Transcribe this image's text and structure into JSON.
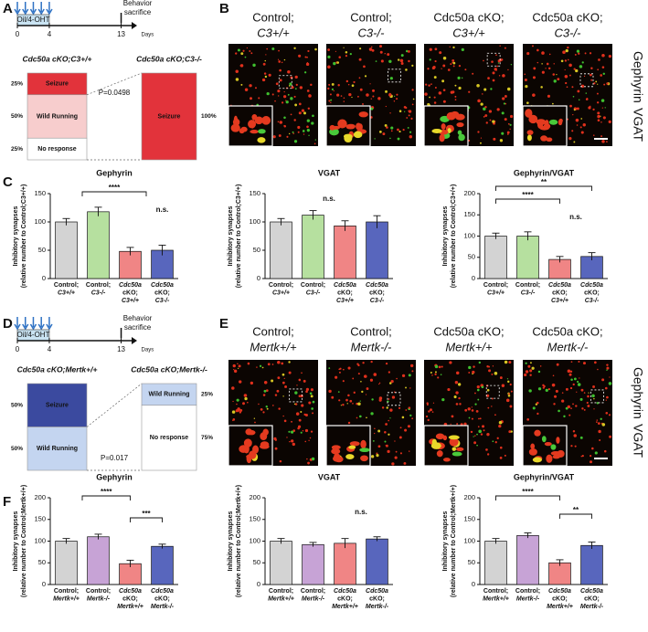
{
  "panel_labels": [
    "A",
    "B",
    "C",
    "D",
    "E",
    "F"
  ],
  "timelines": [
    {
      "treatment": "Oil/4-OHT",
      "event": [
        "Behavior",
        "sacrifice"
      ],
      "days_label": "Days",
      "xlim": [
        0,
        15
      ],
      "xticks": [
        0,
        4,
        13
      ]
    },
    {
      "treatment": "Oil/4-OHT",
      "event": [
        "Behavior",
        "sacrifice"
      ],
      "days_label": "Days",
      "xlim": [
        0,
        15
      ],
      "xticks": [
        0,
        4,
        13
      ]
    }
  ],
  "seizure_panels": [
    {
      "p_value": "P=0.0498",
      "groups": [
        {
          "title": "Cdc50a cKO;C3+/+",
          "segments": [
            "Seizure",
            "Wild Running",
            "No response"
          ],
          "values": [
            25,
            50,
            25
          ],
          "value_labels": [
            "25%",
            "50%",
            "25%"
          ],
          "colors": [
            "#e2333b",
            "#f7cdcd",
            "#ffffff"
          ]
        },
        {
          "title": "Cdc50a cKO;C3-/-",
          "segments": [
            "Seizure"
          ],
          "values": [
            100
          ],
          "value_labels": [
            "100%"
          ],
          "colors": [
            "#e2333b"
          ]
        }
      ]
    },
    {
      "p_value": "P=0.017",
      "groups": [
        {
          "title": "Cdc50a cKO;Mertk+/+",
          "segments": [
            "Seizure",
            "Wild Running"
          ],
          "values": [
            50,
            50
          ],
          "value_labels": [
            "50%",
            "50%"
          ],
          "colors": [
            "#3b4a9f",
            "#c4d5f0"
          ]
        },
        {
          "title": "Cdc50a cKO;Mertk-/-",
          "segments": [
            "Wild Running",
            "No response"
          ],
          "values": [
            25,
            75
          ],
          "value_labels": [
            "25%",
            "75%"
          ],
          "colors": [
            "#c4d5f0",
            "#ffffff"
          ]
        }
      ]
    }
  ],
  "image_panels": [
    {
      "columns": [
        [
          "Control;",
          "C3+/+"
        ],
        [
          "Control;",
          "C3-/-"
        ],
        [
          "Cdc50a cKO;",
          "C3+/+"
        ],
        [
          "Cdc50a cKO;",
          "C3-/-"
        ]
      ],
      "stains": [
        "Gephyrin",
        "VGAT"
      ],
      "stain_colors": [
        "#2fa82f",
        "#e0201e"
      ]
    },
    {
      "columns": [
        [
          "Control;",
          "Mertk+/+"
        ],
        [
          "Control;",
          "Mertk-/-"
        ],
        [
          "Cdc50a cKO;",
          "Mertk+/+"
        ],
        [
          "Cdc50a cKO;",
          "Mertk-/-"
        ]
      ],
      "stains": [
        "Gephyrin",
        "VGAT"
      ],
      "stain_colors": [
        "#2fa82f",
        "#e0201e"
      ]
    }
  ],
  "chart_data": [
    {
      "type": "bar",
      "title": "Gephyrin",
      "ylabel": [
        "Inhibitory synapses",
        "(relative number to Control;C3+/+)"
      ],
      "categories": [
        [
          "Control;",
          "C3+/+"
        ],
        [
          "Control;",
          "C3-/-"
        ],
        [
          "Cdc50a",
          "cKO;",
          "C3+/+"
        ],
        [
          "Cdc50a",
          "cKO;",
          "C3-/-"
        ]
      ],
      "values": [
        100,
        118,
        48,
        50
      ],
      "errors": [
        6,
        8,
        7,
        9
      ],
      "colors": [
        "#d3d3d3",
        "#b6e09f",
        "#f08585",
        "#5866bd"
      ],
      "ylim": [
        0,
        150
      ],
      "yticks": [
        0,
        50,
        100,
        150
      ],
      "annotations": [
        "****",
        "n.s."
      ]
    },
    {
      "type": "bar",
      "title": "VGAT",
      "ylabel": [
        "Inhibitory synapses",
        "(relative number to Control;C3+/+)"
      ],
      "categories": [
        [
          "Control;",
          "C3+/+"
        ],
        [
          "Control;",
          "C3-/-"
        ],
        [
          "Cdc50a",
          "cKO;",
          "C3+/+"
        ],
        [
          "Cdc50a",
          "cKO;",
          "C3-/-"
        ]
      ],
      "values": [
        100,
        112,
        93,
        100
      ],
      "errors": [
        6,
        8,
        9,
        11
      ],
      "colors": [
        "#d3d3d3",
        "#b6e09f",
        "#f08585",
        "#5866bd"
      ],
      "ylim": [
        0,
        150
      ],
      "yticks": [
        0,
        50,
        100,
        150
      ],
      "annotations": [
        "n.s."
      ]
    },
    {
      "type": "bar",
      "title": "Gephyrin/VGAT",
      "ylabel": [
        "Inhibitory synapses",
        "(relative number to Control;C3+/+)"
      ],
      "categories": [
        [
          "Control;",
          "C3+/+"
        ],
        [
          "Control;",
          "C3-/-"
        ],
        [
          "Cdc50a",
          "cKO;",
          "C3+/+"
        ],
        [
          "Cdc50a",
          "cKO;",
          "C3-/-"
        ]
      ],
      "values": [
        100,
        100,
        45,
        52
      ],
      "errors": [
        7,
        10,
        7,
        9
      ],
      "colors": [
        "#d3d3d3",
        "#b6e09f",
        "#f08585",
        "#5866bd"
      ],
      "ylim": [
        0,
        200
      ],
      "yticks": [
        0,
        50,
        100,
        150,
        200
      ],
      "annotations": [
        "**",
        "****",
        "n.s."
      ]
    },
    {
      "type": "bar",
      "title": "Gephyrin",
      "ylabel": [
        "Inhibitory synapses",
        "(relative number to Control;Mertk+/+)"
      ],
      "categories": [
        [
          "Control;",
          "Mertk+/+"
        ],
        [
          "Control;",
          "Mertk-/-"
        ],
        [
          "Cdc50a",
          "cKO;",
          "Mertk+/+"
        ],
        [
          "Cdc50a",
          "cKO;",
          "Mertk-/-"
        ]
      ],
      "values": [
        100,
        110,
        48,
        88
      ],
      "errors": [
        6,
        6,
        8,
        5
      ],
      "colors": [
        "#d3d3d3",
        "#c7a3d6",
        "#f08585",
        "#5866bd"
      ],
      "ylim": [
        0,
        200
      ],
      "yticks": [
        0,
        50,
        100,
        150,
        200
      ],
      "annotations": [
        "****",
        "***"
      ]
    },
    {
      "type": "bar",
      "title": "VGAT",
      "ylabel": [
        "Inhibitory synapses",
        "(relative number to Control;Mertk+/+)"
      ],
      "categories": [
        [
          "Control;",
          "Mertk+/+"
        ],
        [
          "Control;",
          "Mertk-/-"
        ],
        [
          "Cdc50a",
          "cKO;",
          "Mertk+/+"
        ],
        [
          "Cdc50a",
          "cKO;",
          "Mertk-/-"
        ]
      ],
      "values": [
        100,
        92,
        95,
        105
      ],
      "errors": [
        6,
        5,
        11,
        5
      ],
      "colors": [
        "#d3d3d3",
        "#c7a3d6",
        "#f08585",
        "#5866bd"
      ],
      "ylim": [
        0,
        200
      ],
      "yticks": [
        0,
        50,
        100,
        150,
        200
      ],
      "annotations": [
        "n.s."
      ]
    },
    {
      "type": "bar",
      "title": "Gephyrin/VGAT",
      "ylabel": [
        "Inhibitory synapses",
        "(relative number to Control;Mertk+/+)"
      ],
      "categories": [
        [
          "Control;",
          "Mertk+/+"
        ],
        [
          "Control;",
          "Mertk-/-"
        ],
        [
          "Cdc50a",
          "cKO;",
          "Mertk+/+"
        ],
        [
          "Cdc50a",
          "cKO;",
          "Mertk-/-"
        ]
      ],
      "values": [
        100,
        113,
        50,
        90
      ],
      "errors": [
        6,
        6,
        7,
        8
      ],
      "colors": [
        "#d3d3d3",
        "#c7a3d6",
        "#f08585",
        "#5866bd"
      ],
      "ylim": [
        0,
        200
      ],
      "yticks": [
        0,
        50,
        100,
        150,
        200
      ],
      "annotations": [
        "****",
        "**"
      ]
    }
  ]
}
